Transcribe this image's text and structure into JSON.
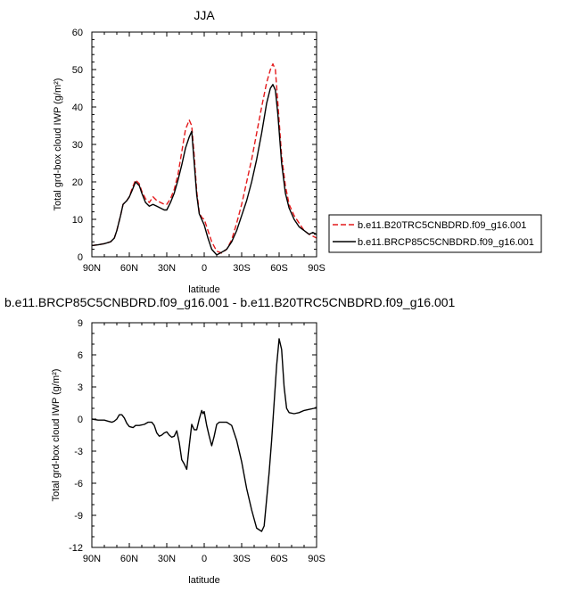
{
  "chart_data": [
    {
      "type": "line",
      "title": "JJA",
      "xlabel": "latitude",
      "ylabel": "Total grd-box cloud IWP (g/m²)",
      "xticks": [
        90,
        60,
        30,
        0,
        -30,
        -60,
        -90
      ],
      "xticklabels": [
        "90N",
        "60N",
        "30N",
        "0",
        "30S",
        "60S",
        "90S"
      ],
      "yticks": [
        0,
        10,
        20,
        30,
        40,
        50,
        60
      ],
      "xlim": [
        90,
        -90
      ],
      "ylim": [
        0,
        60
      ],
      "legend_position": "right",
      "series": [
        {
          "name": "b.e11.B20TRC5CNBDRD.f09_g16.001",
          "color": "#e41a1c",
          "dash": "dashed",
          "x": [
            90,
            85,
            80,
            75,
            72,
            70,
            67,
            65,
            62,
            60,
            58,
            55,
            52,
            50,
            47,
            44,
            41,
            38,
            35,
            32,
            30,
            27,
            24,
            21,
            18,
            15,
            12,
            10,
            8,
            6,
            4,
            2,
            0,
            -3,
            -6,
            -10,
            -14,
            -18,
            -22,
            -26,
            -30,
            -34,
            -38,
            -42,
            -46,
            -50,
            -53,
            -55,
            -57,
            -59,
            -62,
            -65,
            -68,
            -72,
            -76,
            -80,
            -84,
            -87,
            -90
          ],
          "y": [
            3,
            3.2,
            3.5,
            4,
            5,
            7,
            11,
            14,
            15,
            16,
            18,
            20.5,
            19.5,
            17.5,
            15.5,
            14.5,
            16,
            15,
            14.5,
            14,
            14,
            15.5,
            18,
            22,
            28,
            34,
            36.5,
            35,
            27,
            17.5,
            12,
            10.5,
            10,
            7,
            4,
            1.5,
            1,
            2,
            4.5,
            9,
            14,
            20,
            26,
            33,
            40,
            46.5,
            50,
            51.5,
            50,
            41,
            27,
            19,
            14,
            11,
            9,
            7,
            6,
            5.5,
            5
          ]
        },
        {
          "name": "b.e11.BRCP85C5CNBDRD.f09_g16.001",
          "color": "#000000",
          "dash": "solid",
          "x": [
            90,
            85,
            80,
            75,
            72,
            70,
            67,
            65,
            62,
            60,
            58,
            55,
            52,
            50,
            47,
            44,
            41,
            38,
            35,
            32,
            30,
            27,
            24,
            21,
            18,
            15,
            12,
            10,
            8,
            6,
            4,
            2,
            0,
            -3,
            -6,
            -10,
            -14,
            -18,
            -22,
            -26,
            -30,
            -34,
            -38,
            -42,
            -46,
            -50,
            -53,
            -55,
            -57,
            -59,
            -62,
            -65,
            -68,
            -72,
            -76,
            -80,
            -84,
            -87,
            -90
          ],
          "y": [
            3,
            3.2,
            3.5,
            4,
            5,
            7,
            11,
            14,
            15,
            16,
            17.5,
            20,
            19,
            17,
            14.5,
            13.5,
            14,
            13.5,
            13,
            12.5,
            12.5,
            14.5,
            17,
            20.5,
            24.5,
            29,
            32,
            33.5,
            25,
            16.5,
            11.5,
            10,
            8.5,
            5,
            2,
            0.5,
            1.2,
            2,
            4,
            7,
            11,
            15,
            20,
            26,
            33,
            41,
            45,
            46,
            44.5,
            38,
            25,
            17,
            13,
            10,
            8,
            7,
            6,
            6.5,
            6
          ]
        }
      ]
    },
    {
      "type": "line",
      "title": "b.e11.BRCP85C5CNBDRD.f09_g16.001 - b.e11.B20TRC5CNBDRD.f09_g16.001",
      "xlabel": "latitude",
      "ylabel": "Total grd-box cloud IWP (g/m²)",
      "xticks": [
        90,
        60,
        30,
        0,
        -30,
        -60,
        -90
      ],
      "xticklabels": [
        "90N",
        "60N",
        "30N",
        "0",
        "30S",
        "60S",
        "90S"
      ],
      "yticks": [
        -12,
        -9,
        -6,
        -3,
        0,
        3,
        6,
        9
      ],
      "yticklabels": [
        "-12",
        "-9",
        "-6",
        "-3",
        "0",
        "3",
        "6",
        "9"
      ],
      "xlim": [
        90,
        -90
      ],
      "ylim": [
        -12,
        9
      ],
      "series": [
        {
          "color": "#000000",
          "dash": "solid",
          "x": [
            90,
            85,
            80,
            77,
            74,
            72,
            70,
            68,
            66,
            64,
            62,
            60,
            57,
            55,
            52,
            48,
            45,
            42,
            40,
            38,
            36,
            34,
            32,
            30,
            28,
            26,
            24,
            22,
            20,
            18,
            16,
            14,
            12,
            10,
            8,
            6,
            4,
            2,
            1,
            0,
            -2,
            -4,
            -6,
            -8,
            -10,
            -12,
            -14,
            -18,
            -22,
            -26,
            -30,
            -34,
            -38,
            -42,
            -46,
            -48,
            -50,
            -52,
            -54,
            -56,
            -58,
            -60,
            -62,
            -64,
            -66,
            -68,
            -72,
            -76,
            -80,
            -84,
            -88,
            -90
          ],
          "y": [
            0,
            -0.1,
            -0.1,
            -0.2,
            -0.3,
            -0.2,
            0,
            0.4,
            0.4,
            0.1,
            -0.4,
            -0.7,
            -0.8,
            -0.6,
            -0.6,
            -0.5,
            -0.3,
            -0.3,
            -0.6,
            -1.3,
            -1.6,
            -1.5,
            -1.3,
            -1.2,
            -1.5,
            -1.7,
            -1.6,
            -1.1,
            -2.2,
            -3.8,
            -4.2,
            -4.7,
            -2.5,
            -0.5,
            -1.0,
            -1.0,
            0,
            0.8,
            0.5,
            0.7,
            -0.6,
            -1.6,
            -2.5,
            -1.6,
            -0.5,
            -0.3,
            -0.3,
            -0.3,
            -0.6,
            -2.0,
            -4.0,
            -6.5,
            -8.5,
            -10.2,
            -10.5,
            -10.0,
            -7.5,
            -5.0,
            -2.0,
            1.5,
            5.0,
            7.5,
            6.5,
            3.0,
            1.0,
            0.6,
            0.5,
            0.6,
            0.8,
            0.9,
            1.0,
            1.1
          ]
        }
      ]
    }
  ]
}
